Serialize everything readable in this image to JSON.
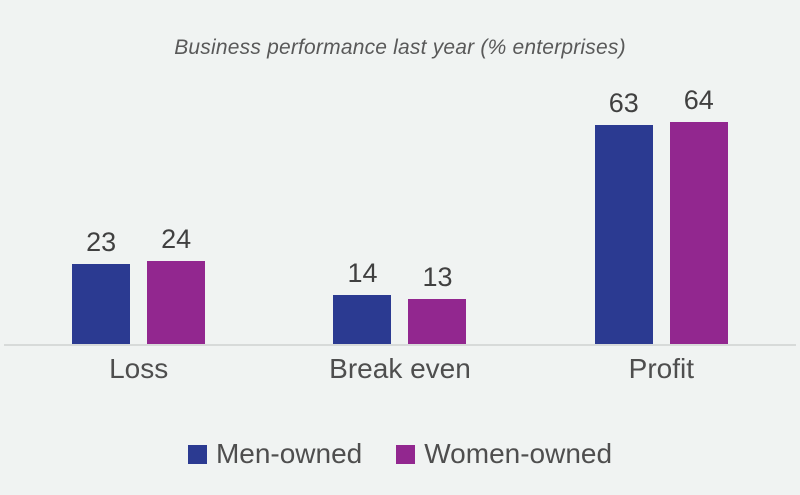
{
  "chart_data": {
    "type": "bar",
    "title": "Business performance last year (% enterprises)",
    "categories": [
      "Loss",
      "Break even",
      "Profit"
    ],
    "series": [
      {
        "name": "Men-owned",
        "color": "#2b3a91",
        "values": [
          23,
          14,
          63
        ]
      },
      {
        "name": "Women-owned",
        "color": "#92278f",
        "values": [
          24,
          13,
          64
        ]
      }
    ],
    "xlabel": "",
    "ylabel": "",
    "ylim": [
      0,
      70
    ],
    "grid": false,
    "value_labels": true,
    "legend_position": "bottom"
  },
  "colors": {
    "background": "#f0f3f2",
    "axis_line": "#d7dad9",
    "title_text": "#595959",
    "value_label_text": "#404040",
    "category_text": "#4e4e4e",
    "legend_text": "#4e4e4e"
  }
}
